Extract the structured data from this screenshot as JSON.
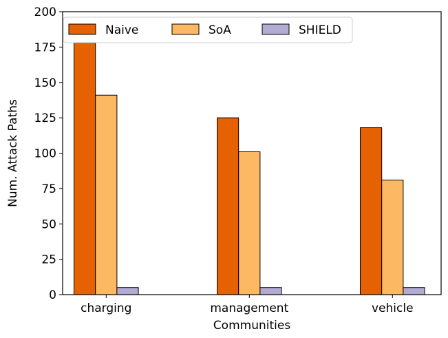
{
  "chart_data": {
    "type": "bar",
    "title": "",
    "xlabel": "Communities",
    "ylabel": "Num. Attack Paths",
    "categories": [
      "charging",
      "management",
      "vehicle"
    ],
    "ylim": [
      0,
      200
    ],
    "yticks": [
      0,
      25,
      50,
      75,
      100,
      125,
      150,
      175,
      200
    ],
    "series": [
      {
        "name": "Naive",
        "color": "#e66101",
        "values": [
          178,
          125,
          118
        ]
      },
      {
        "name": "SoA",
        "color": "#fdb863",
        "values": [
          141,
          101,
          81
        ]
      },
      {
        "name": "SHIELD",
        "color": "#b2abd2",
        "values": [
          5,
          5,
          5
        ]
      }
    ],
    "legend_position": "top-left",
    "grid": false
  }
}
